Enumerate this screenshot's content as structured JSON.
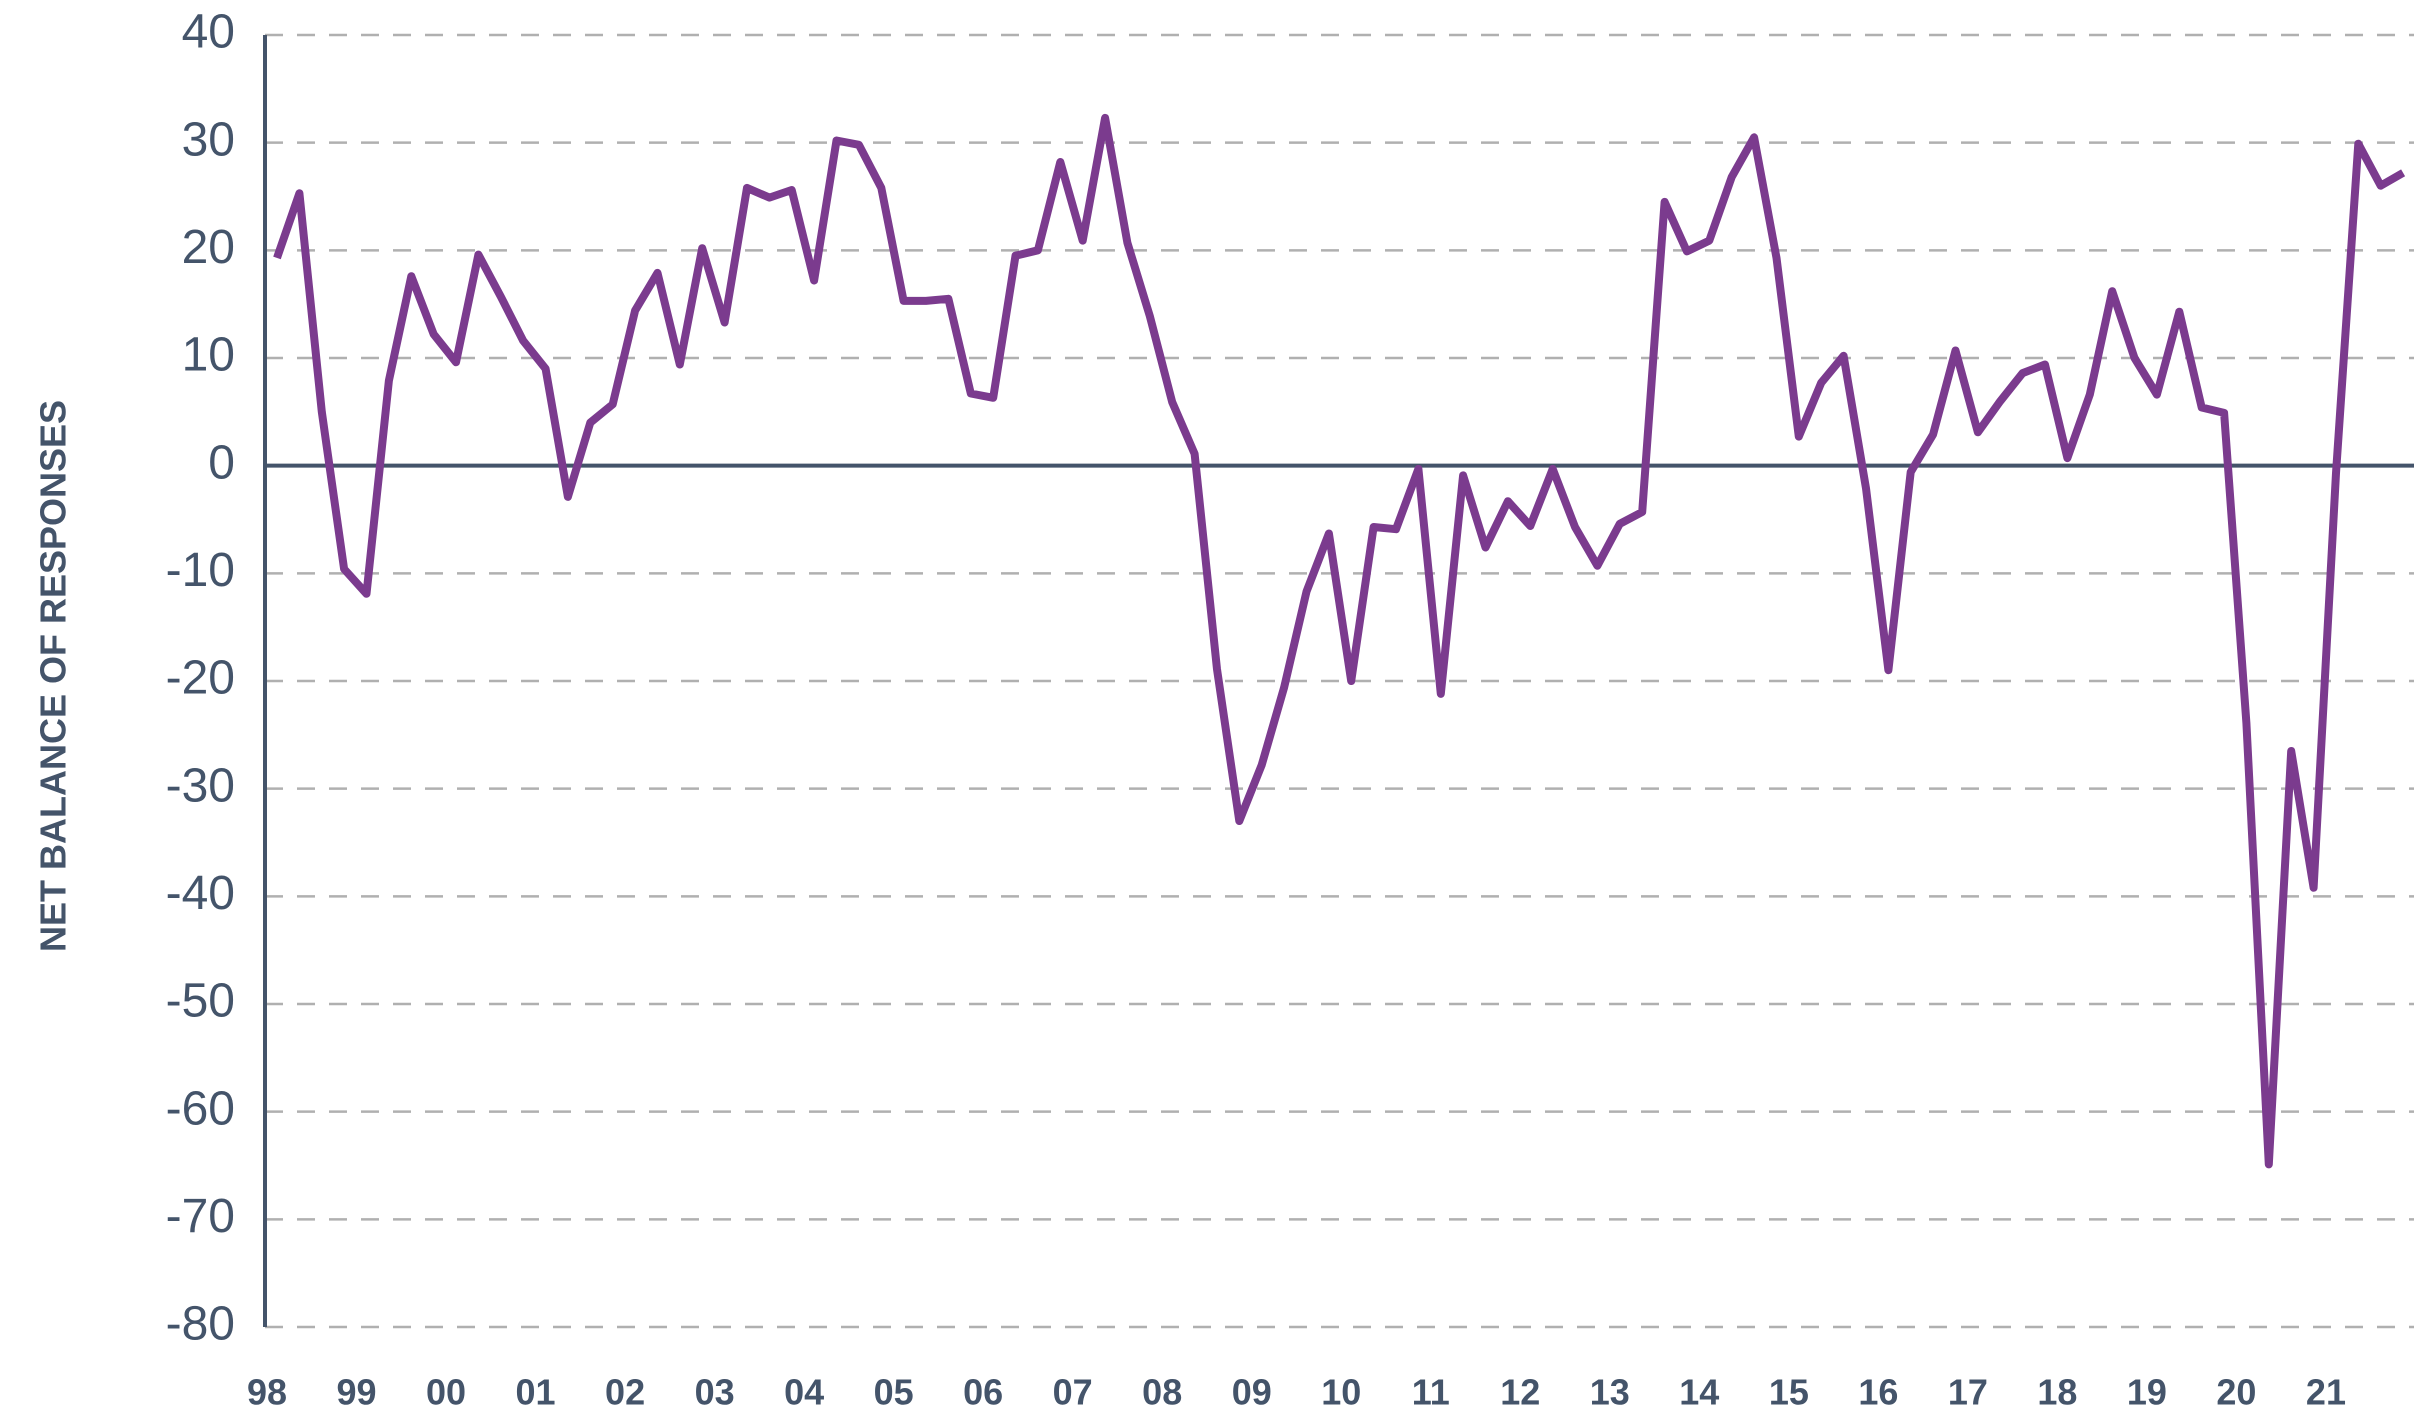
{
  "chart_data": {
    "type": "line",
    "y_label": "NET BALANCE OF RESPONSES",
    "categories": [
      "98",
      null,
      null,
      null,
      "99",
      null,
      null,
      null,
      "00",
      null,
      null,
      null,
      "01",
      null,
      null,
      null,
      "02",
      null,
      null,
      null,
      "03",
      null,
      null,
      null,
      "04",
      null,
      null,
      null,
      "05",
      null,
      null,
      null,
      "06",
      null,
      null,
      null,
      "07",
      null,
      null,
      null,
      "08",
      null,
      null,
      null,
      "09",
      null,
      null,
      null,
      "10",
      null,
      null,
      null,
      "11",
      null,
      null,
      null,
      "12",
      null,
      null,
      null,
      "13",
      null,
      null,
      null,
      "14",
      null,
      null,
      null,
      "15",
      null,
      null,
      null,
      "16",
      null,
      null,
      null,
      "17",
      null,
      null,
      null,
      "18",
      null,
      null,
      null,
      "19",
      null,
      null,
      null,
      "20",
      null,
      null,
      null,
      "21",
      null,
      null,
      null
    ],
    "values": [
      19.3,
      25.3,
      5,
      -9.6,
      -11.9,
      7.9,
      17.6,
      12.2,
      9.6,
      19.6,
      15.7,
      11.6,
      9,
      -2.9,
      4,
      5.7,
      14.4,
      17.9,
      9.4,
      20.2,
      13.3,
      25.8,
      24.9,
      25.6,
      17.2,
      30.2,
      29.8,
      25.8,
      15.3,
      15.3,
      15.5,
      6.7,
      6.3,
      19.5,
      20,
      28.2,
      20.9,
      32.3,
      20.7,
      13.9,
      5.9,
      1.1,
      -18.9,
      -33,
      -27.8,
      -20.6,
      -11.7,
      -6.3,
      -20,
      -5.7,
      -5.9,
      -0.3,
      -21.2,
      -0.9,
      -7.6,
      -3.3,
      -5.6,
      -0.3,
      -5.7,
      -9.3,
      -5.4,
      -4.3,
      24.5,
      19.9,
      20.9,
      26.8,
      30.5,
      19.3,
      2.7,
      7.7,
      10.2,
      -2.1,
      -19,
      -0.6,
      2.9,
      10.7,
      3.1,
      6,
      8.6,
      9.4,
      0.7,
      6.6,
      16.2,
      10,
      6.6,
      14.3,
      5.4,
      4.9,
      -23.9,
      -64.9,
      -26.5,
      -39.2,
      -0.7,
      29.9,
      26,
      27.2
    ],
    "color": "#7b3b8e",
    "ylim": [
      -80,
      40
    ],
    "yticks": [
      -80,
      -70,
      -60,
      -50,
      -40,
      -30,
      -20,
      -10,
      0,
      10,
      20,
      30,
      40
    ],
    "grid": true
  }
}
